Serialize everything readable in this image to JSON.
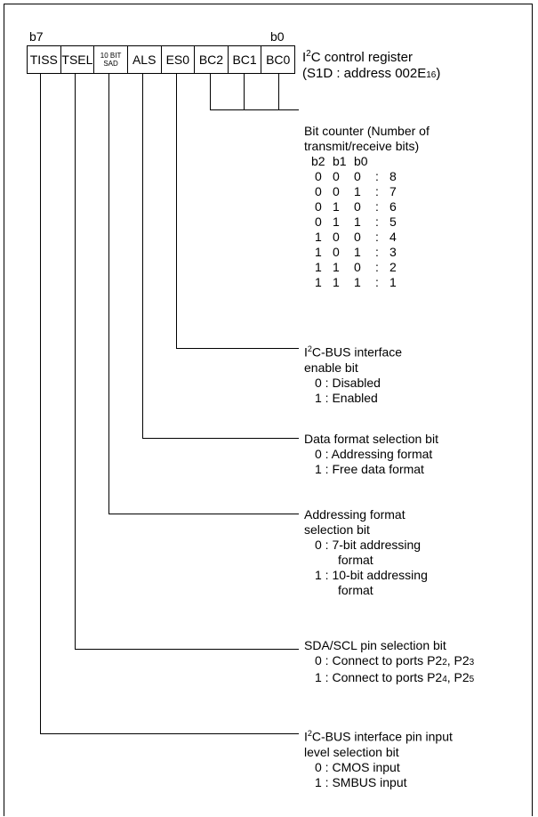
{
  "bit_high": "b7",
  "bit_low": "b0",
  "cells": [
    "TISS",
    "TSEL",
    "",
    "ALS",
    "ES0",
    "BC2",
    "BC1",
    "BC0"
  ],
  "cell_small": [
    "10 BIT",
    "SAD"
  ],
  "register": {
    "prefix": "I",
    "sup": "2",
    "name": "C control register",
    "addr_line": "(S1D : address 002E",
    "addr_sub": "16",
    "addr_close": ")"
  },
  "bit_counter": {
    "title1": "Bit counter (Number of",
    "title2": "transmit/receive bits)",
    "header": [
      "b2",
      "b1",
      "b0"
    ],
    "rows": [
      [
        "0",
        "0",
        "0",
        ":",
        "8"
      ],
      [
        "0",
        "0",
        "1",
        ":",
        "7"
      ],
      [
        "0",
        "1",
        "0",
        ":",
        "6"
      ],
      [
        "0",
        "1",
        "1",
        ":",
        "5"
      ],
      [
        "1",
        "0",
        "0",
        ":",
        "4"
      ],
      [
        "1",
        "0",
        "1",
        ":",
        "3"
      ],
      [
        "1",
        "1",
        "0",
        ":",
        "2"
      ],
      [
        "1",
        "1",
        "1",
        ":",
        "1"
      ]
    ]
  },
  "es0": {
    "prefix": "I",
    "sup": "2",
    "title1": "C-BUS interface",
    "title2": "enable bit",
    "opt0": "0 : Disabled",
    "opt1": "1 : Enabled"
  },
  "als": {
    "title": "Data format selection bit",
    "opt0": "0 : Addressing format",
    "opt1": "1 : Free data format"
  },
  "sad": {
    "title1": "Addressing format",
    "title2": "selection bit",
    "opt0a": "0 : 7-bit addressing",
    "opt0b": "format",
    "opt1a": "1 : 10-bit addressing",
    "opt1b": "format"
  },
  "tsel": {
    "title": "SDA/SCL pin selection bit",
    "opt0": "0 : Connect to ports P2",
    "opt0_s1": "2",
    "opt0_mid": ", P2",
    "opt0_s2": "3",
    "opt1": "1 : Connect to ports P2",
    "opt1_s1": "4",
    "opt1_mid": ", P2",
    "opt1_s2": "5"
  },
  "tiss": {
    "prefix": "I",
    "sup": "2",
    "title1": "C-BUS interface pin input",
    "title2": "level selection bit",
    "opt0": "0 : CMOS input",
    "opt1": "1 : SMBUS input"
  }
}
